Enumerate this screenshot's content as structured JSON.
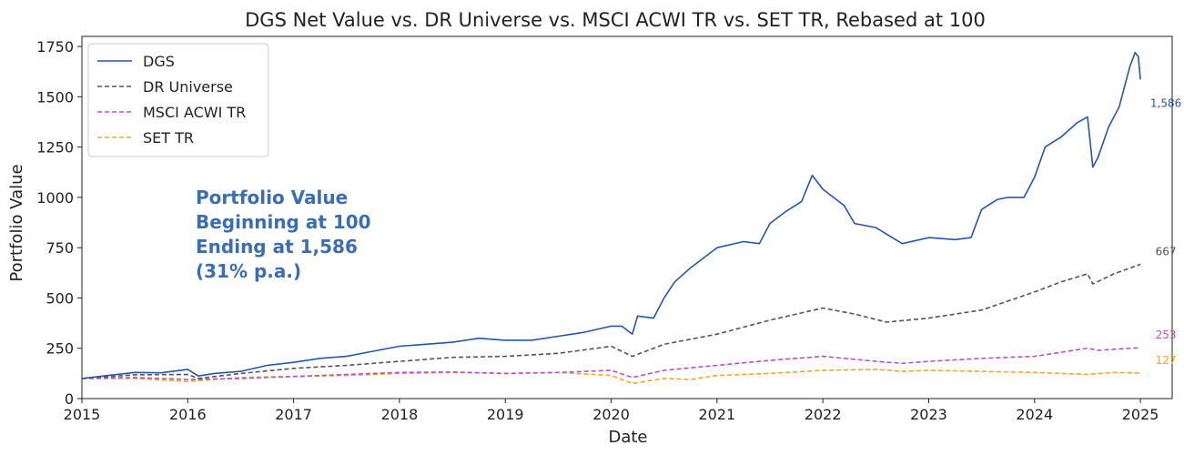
{
  "chart_data": {
    "type": "line",
    "title": "DGS Net Value vs. DR Universe vs. MSCI ACWI TR vs. SET TR, Rebased at 100",
    "xlabel": "Date",
    "ylabel": "Portfolio Value",
    "xlim": [
      2015,
      2025.3
    ],
    "ylim": [
      0,
      1800
    ],
    "xticks": [
      2015,
      2016,
      2017,
      2018,
      2019,
      2020,
      2021,
      2022,
      2023,
      2024,
      2025
    ],
    "xtick_labels": [
      "2015",
      "2016",
      "2017",
      "2018",
      "2019",
      "2020",
      "2021",
      "2022",
      "2023",
      "2024",
      "2025"
    ],
    "yticks": [
      0,
      250,
      500,
      750,
      1000,
      1250,
      1500,
      1750
    ],
    "ytick_labels": [
      "0",
      "250",
      "500",
      "750",
      "1000",
      "1250",
      "1500",
      "1750"
    ],
    "legend_position": "top-left",
    "annotation_lines": [
      "Portfolio Value",
      "Beginning at 100",
      "Ending at 1,586",
      "(31% p.a.)"
    ],
    "series": [
      {
        "name": "DGS",
        "color": "#2557a7",
        "style": "solid",
        "end_label": "1,586",
        "end_value": 1586,
        "points": [
          [
            2015,
            100
          ],
          [
            2015.25,
            115
          ],
          [
            2015.5,
            130
          ],
          [
            2015.75,
            128
          ],
          [
            2016,
            145
          ],
          [
            2016.1,
            112
          ],
          [
            2016.25,
            125
          ],
          [
            2016.5,
            135
          ],
          [
            2016.75,
            165
          ],
          [
            2017,
            180
          ],
          [
            2017.25,
            200
          ],
          [
            2017.5,
            210
          ],
          [
            2017.75,
            235
          ],
          [
            2018,
            260
          ],
          [
            2018.25,
            270
          ],
          [
            2018.5,
            280
          ],
          [
            2018.75,
            300
          ],
          [
            2019,
            290
          ],
          [
            2019.25,
            290
          ],
          [
            2019.5,
            310
          ],
          [
            2019.75,
            330
          ],
          [
            2020,
            360
          ],
          [
            2020.1,
            360
          ],
          [
            2020.2,
            320
          ],
          [
            2020.25,
            410
          ],
          [
            2020.4,
            400
          ],
          [
            2020.5,
            500
          ],
          [
            2020.6,
            580
          ],
          [
            2020.75,
            650
          ],
          [
            2021,
            750
          ],
          [
            2021.25,
            780
          ],
          [
            2021.4,
            770
          ],
          [
            2021.5,
            870
          ],
          [
            2021.65,
            930
          ],
          [
            2021.8,
            980
          ],
          [
            2021.9,
            1110
          ],
          [
            2022,
            1040
          ],
          [
            2022.2,
            960
          ],
          [
            2022.3,
            870
          ],
          [
            2022.5,
            850
          ],
          [
            2022.75,
            770
          ],
          [
            2023,
            800
          ],
          [
            2023.25,
            790
          ],
          [
            2023.4,
            800
          ],
          [
            2023.5,
            940
          ],
          [
            2023.65,
            990
          ],
          [
            2023.75,
            1000
          ],
          [
            2023.9,
            1000
          ],
          [
            2024,
            1100
          ],
          [
            2024.1,
            1250
          ],
          [
            2024.25,
            1300
          ],
          [
            2024.4,
            1370
          ],
          [
            2024.5,
            1400
          ],
          [
            2024.55,
            1150
          ],
          [
            2024.6,
            1200
          ],
          [
            2024.7,
            1350
          ],
          [
            2024.8,
            1450
          ],
          [
            2024.9,
            1650
          ],
          [
            2024.95,
            1720
          ],
          [
            2024.98,
            1700
          ],
          [
            2025,
            1586
          ]
        ]
      },
      {
        "name": "DR Universe",
        "color": "#555555",
        "style": "dashed",
        "end_label": "667",
        "end_value": 667,
        "points": [
          [
            2015,
            100
          ],
          [
            2015.5,
            118
          ],
          [
            2016,
            120
          ],
          [
            2016.1,
            100
          ],
          [
            2016.5,
            125
          ],
          [
            2017,
            150
          ],
          [
            2017.5,
            165
          ],
          [
            2018,
            185
          ],
          [
            2018.5,
            205
          ],
          [
            2019,
            210
          ],
          [
            2019.5,
            225
          ],
          [
            2020,
            260
          ],
          [
            2020.2,
            210
          ],
          [
            2020.5,
            270
          ],
          [
            2021,
            320
          ],
          [
            2021.5,
            390
          ],
          [
            2022,
            450
          ],
          [
            2022.3,
            420
          ],
          [
            2022.6,
            380
          ],
          [
            2023,
            400
          ],
          [
            2023.5,
            440
          ],
          [
            2024,
            530
          ],
          [
            2024.25,
            580
          ],
          [
            2024.5,
            620
          ],
          [
            2024.55,
            570
          ],
          [
            2024.75,
            620
          ],
          [
            2025,
            667
          ]
        ]
      },
      {
        "name": "MSCI ACWI TR",
        "color": "#b84fd1",
        "style": "dashed",
        "end_label": "253",
        "end_value": 253,
        "points": [
          [
            2015,
            100
          ],
          [
            2015.5,
            105
          ],
          [
            2016,
            95
          ],
          [
            2016.5,
            100
          ],
          [
            2017,
            110
          ],
          [
            2017.5,
            120
          ],
          [
            2018,
            130
          ],
          [
            2018.5,
            132
          ],
          [
            2019,
            125
          ],
          [
            2019.5,
            130
          ],
          [
            2020,
            140
          ],
          [
            2020.2,
            105
          ],
          [
            2020.5,
            140
          ],
          [
            2021,
            165
          ],
          [
            2021.5,
            190
          ],
          [
            2022,
            210
          ],
          [
            2022.5,
            185
          ],
          [
            2022.75,
            175
          ],
          [
            2023,
            185
          ],
          [
            2023.5,
            200
          ],
          [
            2024,
            210
          ],
          [
            2024.5,
            250
          ],
          [
            2024.6,
            240
          ],
          [
            2025,
            253
          ]
        ]
      },
      {
        "name": "SET TR",
        "color": "#f5a623",
        "style": "dashed",
        "end_label": "127",
        "end_value": 127,
        "points": [
          [
            2015,
            100
          ],
          [
            2015.5,
            100
          ],
          [
            2016,
            85
          ],
          [
            2016.5,
            105
          ],
          [
            2017,
            110
          ],
          [
            2017.5,
            115
          ],
          [
            2018,
            125
          ],
          [
            2018.5,
            130
          ],
          [
            2019,
            125
          ],
          [
            2019.5,
            130
          ],
          [
            2020,
            115
          ],
          [
            2020.2,
            75
          ],
          [
            2020.5,
            100
          ],
          [
            2020.75,
            95
          ],
          [
            2021,
            115
          ],
          [
            2021.5,
            125
          ],
          [
            2022,
            140
          ],
          [
            2022.5,
            145
          ],
          [
            2022.75,
            135
          ],
          [
            2023,
            140
          ],
          [
            2023.5,
            135
          ],
          [
            2024,
            130
          ],
          [
            2024.5,
            120
          ],
          [
            2024.75,
            130
          ],
          [
            2025,
            127
          ]
        ]
      }
    ]
  }
}
